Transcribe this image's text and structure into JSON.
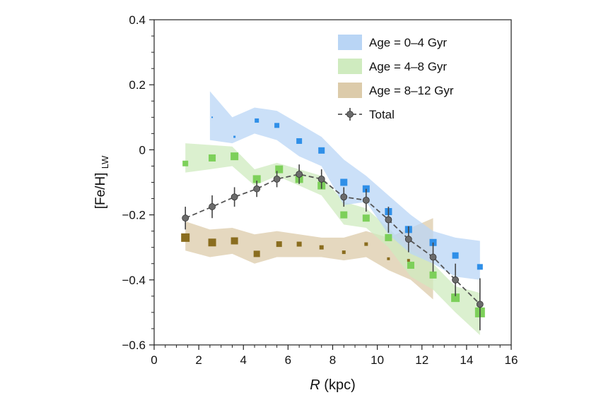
{
  "chart_data": {
    "type": "scatter",
    "xlabel": "R (kpc)",
    "xlabel_italic": "R",
    "xlabel_unit": "(kpc)",
    "ylabel_main": "[Fe/H]",
    "ylabel_sub": "LW",
    "xlim": [
      0,
      16
    ],
    "ylim": [
      -0.6,
      0.4
    ],
    "xticks": [
      0,
      2,
      4,
      6,
      8,
      10,
      12,
      14,
      16
    ],
    "xtick_labels": [
      "0",
      "2",
      "4",
      "6",
      "8",
      "10",
      "12",
      "14",
      "16"
    ],
    "yticks": [
      -0.6,
      -0.4,
      -0.2,
      0,
      0.2,
      0.4
    ],
    "ytick_labels": [
      "−0.6",
      "−0.4",
      "−0.2",
      "0",
      "0.2",
      "0.4"
    ],
    "legend_position": "top-right",
    "grid": false,
    "series": [
      {
        "name": "Age = 0–4 Gyr",
        "kind": "band-squares",
        "color": "#2f8fe8",
        "band_color": "#b9d5f5",
        "band_x": [
          2.5,
          3.5,
          4.5,
          5.5,
          6.5,
          7.5,
          8.5,
          9.5,
          10.5,
          11.5,
          12.5,
          13.5,
          14.6
        ],
        "band_upper": [
          0.18,
          0.1,
          0.13,
          0.12,
          0.08,
          0.04,
          -0.03,
          -0.08,
          -0.14,
          -0.2,
          -0.25,
          -0.27,
          -0.28
        ],
        "band_lower": [
          0.03,
          0.02,
          0.05,
          0.03,
          -0.02,
          -0.05,
          -0.17,
          -0.16,
          -0.26,
          -0.32,
          -0.35,
          -0.39,
          -0.4
        ],
        "points_x": [
          2.6,
          3.6,
          4.6,
          5.5,
          6.5,
          7.5,
          8.5,
          9.5,
          10.5,
          11.4,
          12.5,
          13.5,
          14.6
        ],
        "points_y": [
          0.1,
          0.04,
          0.09,
          0.075,
          0.027,
          -0.002,
          -0.1,
          -0.12,
          -0.19,
          -0.245,
          -0.285,
          -0.325,
          -0.36
        ],
        "sizes": [
          2,
          3,
          6,
          7,
          8,
          9,
          10,
          10,
          10,
          10,
          10,
          9,
          8
        ]
      },
      {
        "name": "Age = 4–8 Gyr",
        "kind": "band-squares",
        "color": "#7dd05a",
        "band_color": "#cfebbf",
        "band_x": [
          1.4,
          2.5,
          3.5,
          4.5,
          5.5,
          6.5,
          7.5,
          8.5,
          9.5,
          10.5,
          11.5,
          12.5,
          13.5,
          14.6
        ],
        "band_upper": [
          0.02,
          0.015,
          0.01,
          -0.06,
          -0.04,
          -0.06,
          -0.08,
          -0.16,
          -0.18,
          -0.24,
          -0.31,
          -0.35,
          -0.42,
          -0.44
        ],
        "band_lower": [
          -0.07,
          -0.06,
          -0.05,
          -0.11,
          -0.08,
          -0.11,
          -0.14,
          -0.23,
          -0.24,
          -0.3,
          -0.39,
          -0.43,
          -0.5,
          -0.57
        ],
        "points_x": [
          1.4,
          2.6,
          3.6,
          4.6,
          5.6,
          6.5,
          7.5,
          8.5,
          9.5,
          10.5,
          11.5,
          12.5,
          13.5,
          14.6
        ],
        "points_y": [
          -0.042,
          -0.025,
          -0.02,
          -0.09,
          -0.06,
          -0.09,
          -0.11,
          -0.2,
          -0.21,
          -0.27,
          -0.355,
          -0.385,
          -0.455,
          -0.5
        ],
        "sizes": [
          8,
          10,
          11,
          11,
          11,
          11,
          11,
          10,
          10,
          10,
          10,
          10,
          12,
          14
        ]
      },
      {
        "name": "Age = 8–12 Gyr",
        "kind": "band-squares",
        "color": "#8a6d1f",
        "band_color": "#dccbaa",
        "band_x": [
          1.4,
          2.5,
          3.5,
          4.5,
          5.5,
          6.5,
          7.5,
          8.5,
          9.5,
          10.5,
          11.5,
          12.5
        ],
        "band_upper": [
          -0.22,
          -0.245,
          -0.24,
          -0.26,
          -0.25,
          -0.26,
          -0.27,
          -0.27,
          -0.25,
          -0.27,
          -0.24,
          -0.21
        ],
        "band_lower": [
          -0.31,
          -0.33,
          -0.32,
          -0.35,
          -0.33,
          -0.33,
          -0.33,
          -0.34,
          -0.33,
          -0.37,
          -0.4,
          -0.46
        ],
        "points_x": [
          1.4,
          2.6,
          3.6,
          4.6,
          5.6,
          6.5,
          7.5,
          8.5,
          9.5,
          10.5,
          11.4
        ],
        "points_y": [
          -0.27,
          -0.285,
          -0.28,
          -0.32,
          -0.29,
          -0.29,
          -0.3,
          -0.315,
          -0.29,
          -0.335,
          -0.34
        ],
        "sizes": [
          12,
          11,
          10,
          9,
          8,
          7,
          6,
          5,
          5,
          4,
          4
        ]
      },
      {
        "name": "Total",
        "kind": "line-errorbars",
        "color": "#555555",
        "marker_color": "#6b6b6b",
        "x": [
          1.4,
          2.6,
          3.6,
          4.6,
          5.5,
          6.5,
          7.5,
          8.5,
          9.5,
          10.5,
          11.4,
          12.5,
          13.5,
          14.6
        ],
        "y": [
          -0.21,
          -0.175,
          -0.145,
          -0.12,
          -0.09,
          -0.075,
          -0.09,
          -0.145,
          -0.155,
          -0.215,
          -0.275,
          -0.33,
          -0.4,
          -0.475
        ],
        "err": [
          0.035,
          0.035,
          0.03,
          0.025,
          0.025,
          0.03,
          0.03,
          0.03,
          0.035,
          0.04,
          0.04,
          0.045,
          0.05,
          0.08
        ]
      }
    ]
  }
}
